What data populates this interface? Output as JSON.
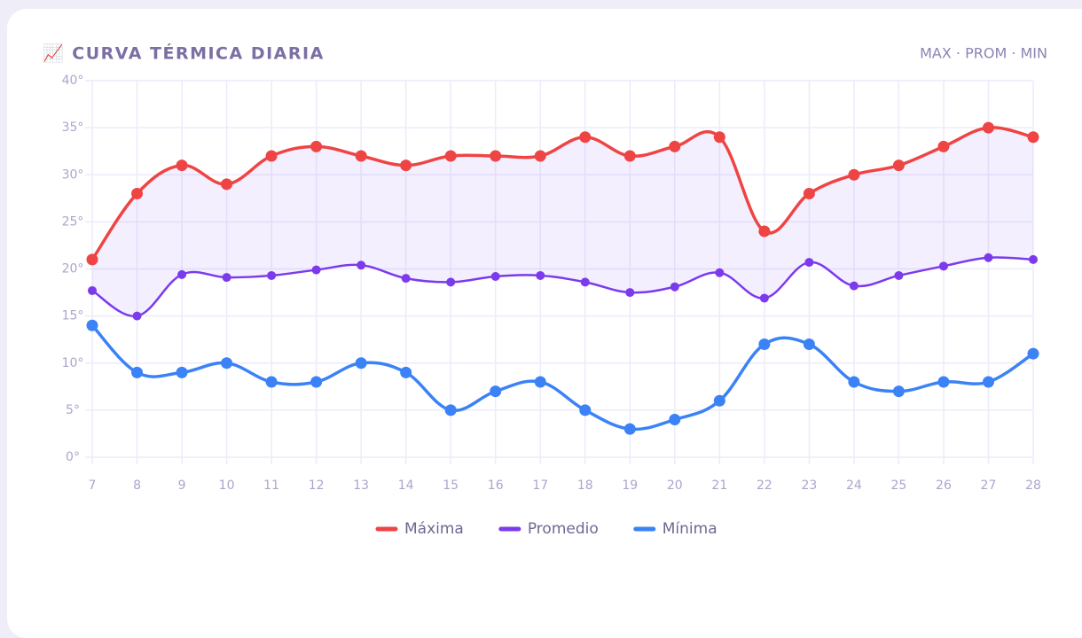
{
  "header": {
    "title": "📈 CURVA TÉRMICA DIARIA",
    "legend_hint": "MAX · PROM · MIN"
  },
  "chart_data": {
    "type": "line",
    "categories": [
      "7",
      "8",
      "9",
      "10",
      "11",
      "12",
      "13",
      "14",
      "15",
      "16",
      "17",
      "18",
      "19",
      "20",
      "21",
      "22",
      "23",
      "24",
      "25",
      "26",
      "27",
      "28"
    ],
    "series": [
      {
        "name": "Máxima",
        "color": "#ef4444",
        "values": [
          21,
          28,
          31,
          29,
          32,
          33,
          32,
          31,
          32,
          32,
          32,
          34,
          32,
          33,
          34,
          24,
          28,
          30,
          31,
          33,
          35,
          34
        ]
      },
      {
        "name": "Promedio",
        "color": "#7c3aed",
        "values": [
          17.7,
          15,
          19.4,
          19.1,
          19.3,
          19.9,
          20.4,
          19,
          18.6,
          19.2,
          19.3,
          18.6,
          17.5,
          18.1,
          19.6,
          16.9,
          20.7,
          18.2,
          19.3,
          20.3,
          21.2,
          21
        ]
      },
      {
        "name": "Mínima",
        "color": "#3b82f6",
        "values": [
          14,
          9,
          9,
          10,
          8,
          8,
          10,
          9,
          5,
          7,
          8,
          5,
          3,
          4,
          6,
          12,
          12,
          8,
          7,
          8,
          8,
          11
        ]
      }
    ],
    "ylim": [
      0,
      40
    ],
    "yticks": [
      {
        "value": 0,
        "label": "0°"
      },
      {
        "value": 5,
        "label": "5°"
      },
      {
        "value": 10,
        "label": "10°"
      },
      {
        "value": 15,
        "label": "15°"
      },
      {
        "value": 20,
        "label": "20°"
      },
      {
        "value": 25,
        "label": "25°"
      },
      {
        "value": 30,
        "label": "30°"
      },
      {
        "value": 35,
        "label": "35°"
      },
      {
        "value": 40,
        "label": "40°"
      }
    ],
    "grid": true
  }
}
